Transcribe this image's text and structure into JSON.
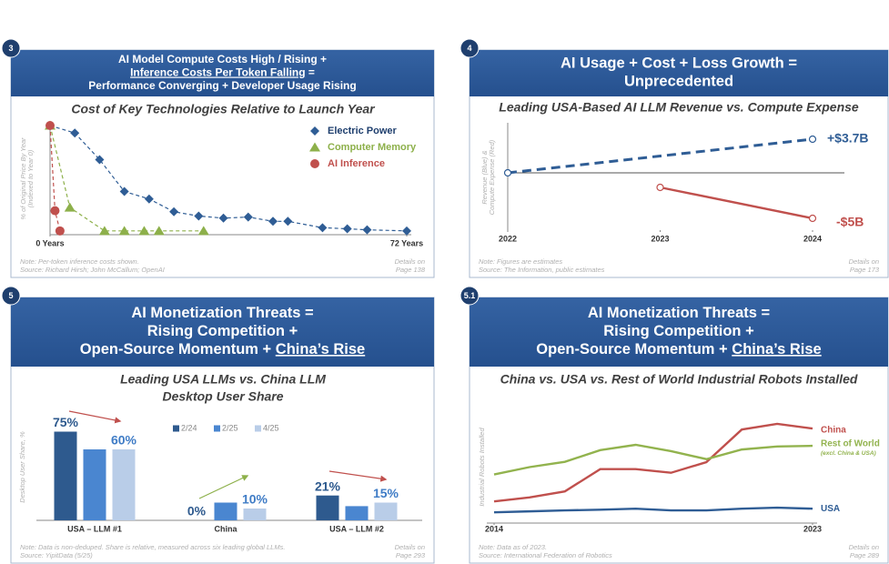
{
  "panels": [
    {
      "badge": "3",
      "heading": [
        [
          {
            "text": "AI Model Compute Costs High / Rising +"
          }
        ],
        [
          {
            "text": "Inference Costs Per Token Falling",
            "underline": true
          },
          {
            "text": " ="
          }
        ],
        [
          {
            "text": "Performance Converging + Developer Usage Rising"
          }
        ]
      ],
      "note": "Note: Per-token inference costs shown.",
      "source": "Source: Richard Hirsh; John McCallum; OpenAI",
      "details": "Details on",
      "page": "Page 138"
    },
    {
      "badge": "4",
      "heading": [
        [
          {
            "text": "AI Usage + Cost + Loss Growth ="
          }
        ],
        [
          {
            "text": "Unprecedented"
          }
        ]
      ],
      "note": "Note: Figures are estimates",
      "source": "Source: The Information, public estimates",
      "details": "Details on",
      "page": "Page 173"
    },
    {
      "badge": "5",
      "heading": [
        [
          {
            "text": "AI Monetization Threats ="
          }
        ],
        [
          {
            "text": "Rising Competition +"
          }
        ],
        [
          {
            "text": "Open-Source Momentum + "
          },
          {
            "text": "China’s Rise",
            "underline": true
          }
        ]
      ],
      "note": "Note: Data is non-deduped. Share is relative, measured across six leading global LLMs.",
      "source": "Source: YipitData (5/25)",
      "details": "Details on",
      "page": "Page 293"
    },
    {
      "badge": "5.1",
      "heading": [
        [
          {
            "text": "AI Monetization Threats ="
          }
        ],
        [
          {
            "text": "Rising Competition +"
          }
        ],
        [
          {
            "text": "Open-Source Momentum + "
          },
          {
            "text": "China’s Rise",
            "underline": true
          }
        ]
      ],
      "note": "Note: Data as of 2023.",
      "source": "Source: International Federation of Robotics",
      "details": "Details on",
      "page": "Page 289"
    }
  ],
  "chart_data": [
    {
      "type": "line",
      "title": "Cost of Key Technologies Relative to Launch Year",
      "ylabel": [
        "% of Original Price By Year",
        "(Indexed to Year 0)"
      ],
      "xlim": [
        0,
        72
      ],
      "xticks": [
        {
          "value": 0,
          "label": "0 Years"
        },
        {
          "value": 72,
          "label": "72 Years"
        }
      ],
      "ylim": [
        0,
        100
      ],
      "legend": "top-right",
      "series": [
        {
          "name": "Electric Power",
          "color": "#2f5d95",
          "marker": "diamond",
          "dashed": true,
          "x": [
            0,
            5,
            10,
            15,
            20,
            25,
            30,
            35,
            40,
            45,
            48,
            55,
            60,
            64,
            72
          ],
          "values": [
            100,
            93,
            68,
            38,
            31,
            19,
            15,
            13,
            14,
            10,
            10,
            4,
            3,
            2,
            1
          ]
        },
        {
          "name": "Computer Memory",
          "color": "#8db04a",
          "marker": "triangle",
          "dashed": true,
          "x": [
            0,
            4,
            11,
            15,
            19,
            22,
            31
          ],
          "values": [
            100,
            23,
            1,
            1,
            1,
            1,
            1
          ]
        },
        {
          "name": "AI Inference",
          "color": "#c0504d",
          "marker": "circle",
          "dashed": true,
          "x": [
            0,
            1,
            2
          ],
          "values": [
            100,
            20,
            1
          ]
        }
      ]
    },
    {
      "type": "line",
      "title": "Leading USA-Based AI LLM Revenue vs. Compute Expense",
      "ylabel": [
        "Revenue (Blue) &",
        "Compute Expense (Red)"
      ],
      "x": [
        2022,
        2023,
        2024
      ],
      "xlim": [
        2022,
        2024
      ],
      "xticks": [
        2022,
        2023,
        2024
      ],
      "ylim": [
        -6,
        5
      ],
      "zero_line": true,
      "series": [
        {
          "color": "#2f5d95",
          "dashed": true,
          "marker": "open-end",
          "values": [
            0,
            1.85,
            3.7
          ],
          "value_labels": [
            null,
            null,
            "+$3.7B"
          ]
        },
        {
          "color": "#c0504d",
          "marker": "open-end",
          "values": [
            null,
            -1.6,
            -5
          ],
          "value_labels": [
            null,
            null,
            "-$5B"
          ]
        }
      ]
    },
    {
      "type": "bar",
      "title": [
        "Leading USA LLMs vs. China LLM",
        "Desktop User Share"
      ],
      "ylabel": [
        "Desktop User Share, %"
      ],
      "categories": [
        "USA – LLM #1",
        "China",
        "USA – LLM #2"
      ],
      "ylim": [
        0,
        90
      ],
      "legend": "top",
      "series": [
        {
          "name": "2/24",
          "color": "#2e5a8e",
          "values": [
            75,
            0,
            21
          ],
          "value_labels": [
            "75%",
            "0%",
            "21%"
          ]
        },
        {
          "name": "2/25",
          "color": "#4a86d0",
          "values": [
            60,
            15,
            12
          ]
        },
        {
          "name": "4/25",
          "color": "#b9cde8",
          "values": [
            60,
            10,
            15
          ],
          "value_labels": [
            "60%",
            "10%",
            "15%"
          ]
        }
      ]
    },
    {
      "type": "line",
      "title": "China vs. USA vs. Rest of World Industrial Robots Installed",
      "ylabel": [
        "Industrial Robots Installed"
      ],
      "x": [
        2014,
        2015,
        2016,
        2017,
        2018,
        2019,
        2020,
        2021,
        2022,
        2023
      ],
      "xlim": [
        2014,
        2023
      ],
      "xticks": [
        2014,
        2023
      ],
      "ylim": [
        0,
        320
      ],
      "legend": "end-labels",
      "series": [
        {
          "name": "China",
          "color": "#c0504d",
          "values": [
            57,
            69,
            87,
            154,
            154,
            143,
            175,
            273,
            290,
            276
          ]
        },
        {
          "name": "Rest of World",
          "sub_label": "(excl. China & USA)",
          "color": "#92b34e",
          "values": [
            138,
            160,
            176,
            211,
            227,
            208,
            184,
            213,
            222,
            224
          ]
        },
        {
          "name": "USA",
          "color": "#2f5d95",
          "values": [
            24,
            27,
            30,
            32,
            35,
            30,
            30,
            35,
            38,
            35
          ]
        }
      ]
    }
  ]
}
